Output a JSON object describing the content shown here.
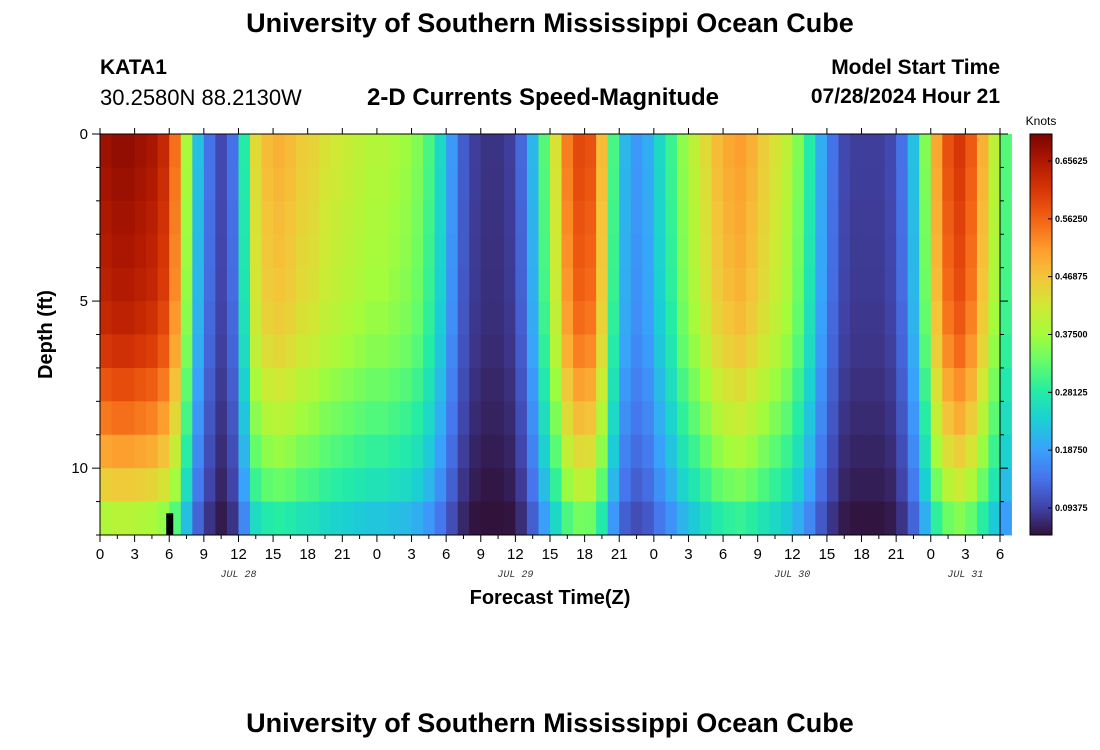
{
  "header": {
    "title": "University of Southern Mississippi Ocean Cube",
    "station_id": "KATA1",
    "station_coords": "30.2580N  88.2130W",
    "model_start_label": "Model Start Time",
    "model_start_value": "07/28/2024 Hour 21"
  },
  "footer": {
    "title": "University of Southern Mississippi Ocean Cube"
  },
  "chart_data": {
    "type": "heatmap",
    "title": "2-D Currents Speed-Magnitude",
    "xlabel": "Forecast Time(Z)",
    "ylabel": "Depth (ft)",
    "x_range_hours": [
      0,
      78
    ],
    "x_tick_hours": [
      0,
      3,
      6,
      9,
      12,
      15,
      18,
      21,
      24,
      27,
      30,
      33,
      36,
      39,
      42,
      45,
      48,
      51,
      54,
      57,
      60,
      63,
      66,
      69,
      72,
      75,
      78
    ],
    "x_tick_labels": [
      "0",
      "3",
      "6",
      "9",
      "12",
      "15",
      "18",
      "21",
      "0",
      "3",
      "6",
      "9",
      "12",
      "15",
      "18",
      "21",
      "0",
      "3",
      "6",
      "9",
      "12",
      "15",
      "18",
      "21",
      "0",
      "3",
      "6"
    ],
    "date_labels": [
      {
        "hour": 12,
        "text": "JUL 28"
      },
      {
        "hour": 36,
        "text": "JUL 29"
      },
      {
        "hour": 60,
        "text": "JUL 30"
      },
      {
        "hour": 75,
        "text": "JUL 31"
      }
    ],
    "y_range_ft": [
      0,
      12
    ],
    "y_ticks": [
      0,
      5,
      10
    ],
    "y_tick_labels": [
      "0",
      "5",
      "10"
    ],
    "depth_levels_ft": [
      0.5,
      1.5,
      2.5,
      3.5,
      4.5,
      5.5,
      6.5,
      7.5,
      8.5,
      9.5,
      10.5,
      11.5
    ],
    "time_step_hours": 1,
    "surface_speed_knots": [
      0.67,
      0.68,
      0.68,
      0.67,
      0.66,
      0.63,
      0.55,
      0.38,
      0.22,
      0.14,
      0.1,
      0.14,
      0.28,
      0.44,
      0.48,
      0.49,
      0.48,
      0.46,
      0.45,
      0.43,
      0.42,
      0.41,
      0.4,
      0.39,
      0.39,
      0.38,
      0.37,
      0.35,
      0.31,
      0.25,
      0.18,
      0.12,
      0.09,
      0.08,
      0.08,
      0.09,
      0.13,
      0.21,
      0.32,
      0.43,
      0.54,
      0.59,
      0.58,
      0.48,
      0.31,
      0.21,
      0.18,
      0.2,
      0.25,
      0.3,
      0.36,
      0.4,
      0.44,
      0.48,
      0.5,
      0.51,
      0.49,
      0.46,
      0.43,
      0.4,
      0.35,
      0.28,
      0.2,
      0.14,
      0.1,
      0.09,
      0.09,
      0.09,
      0.1,
      0.14,
      0.22,
      0.35,
      0.5,
      0.58,
      0.61,
      0.57,
      0.49,
      0.4,
      0.32
    ],
    "depth_attenuation": [
      1.0,
      0.99,
      0.98,
      0.97,
      0.96,
      0.94,
      0.91,
      0.86,
      0.81,
      0.75,
      0.68,
      0.58
    ],
    "color_scale": {
      "label": "Knots",
      "min": 0.05,
      "max": 0.7,
      "ticks": [
        0.09375,
        0.1875,
        0.28125,
        0.375,
        0.46875,
        0.5625,
        0.65625
      ],
      "tick_labels": [
        "0.09375",
        "0.18750",
        "0.28125",
        "0.37500",
        "0.46875",
        "0.56250",
        "0.65625"
      ],
      "colors": [
        "#30123b",
        "#4145ab",
        "#4675ed",
        "#39a2fc",
        "#1bcfd4",
        "#24eca6",
        "#61fc6c",
        "#a4fc3b",
        "#d1e834",
        "#f3c63a",
        "#fe9b2d",
        "#f36315",
        "#d93806",
        "#b11901",
        "#7a0402"
      ]
    },
    "markers": [
      {
        "hour": 6.0,
        "depth_start_ft": 11.5,
        "depth_end_ft": 12,
        "color": "#000000"
      }
    ]
  }
}
